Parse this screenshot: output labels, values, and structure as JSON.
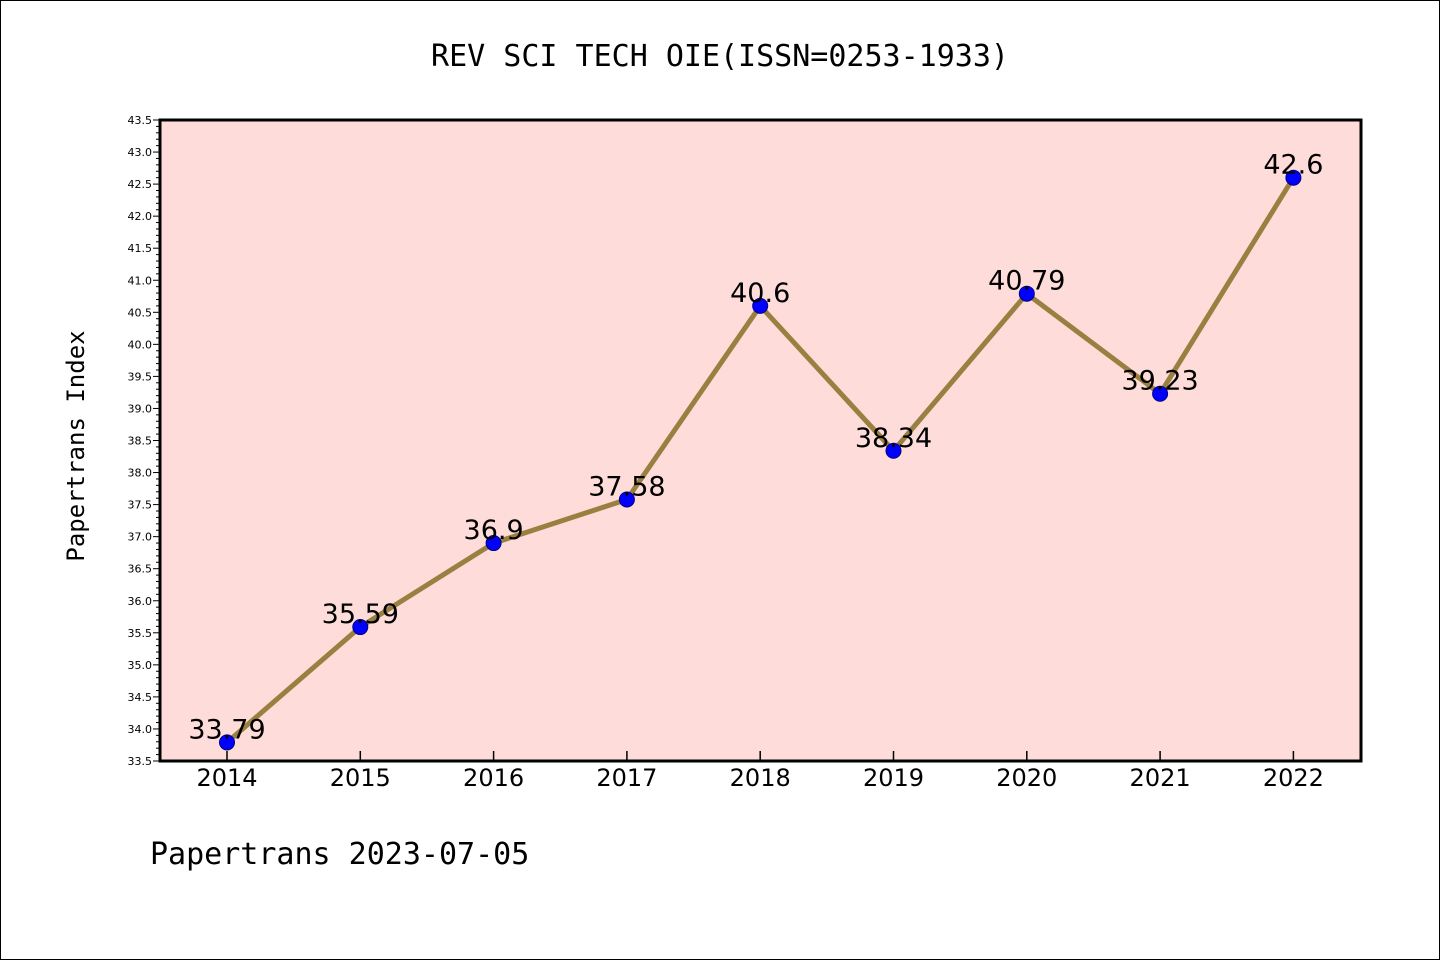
{
  "chart_data": {
    "type": "line",
    "title": "REV SCI TECH OIE(ISSN=0253-1933)",
    "xlabel": "",
    "ylabel": "Papertrans Index",
    "categories": [
      "2014",
      "2015",
      "2016",
      "2017",
      "2018",
      "2019",
      "2020",
      "2021",
      "2022"
    ],
    "series": [
      {
        "values": [
          33.79,
          35.59,
          36.9,
          37.58,
          40.6,
          38.34,
          40.79,
          39.23,
          42.6
        ]
      }
    ],
    "data_labels": [
      "33.79",
      "35.59",
      "36.9",
      "37.58",
      "40.6",
      "38.34",
      "40.79",
      "39.23",
      "42.6"
    ],
    "ylim": [
      33.5,
      43.5
    ],
    "yticks": [
      "33.5",
      "34.0",
      "34.5",
      "35.0",
      "35.5",
      "36.0",
      "36.5",
      "37.0",
      "37.5",
      "38.0",
      "38.5",
      "39.0",
      "39.5",
      "40.0",
      "40.5",
      "41.0",
      "41.5",
      "42.0",
      "42.5",
      "43.0",
      "43.5"
    ],
    "grid": false,
    "legend": "none",
    "colors": {
      "plot_background": "#fddcd9",
      "line": "#9a8040",
      "marker": "#0000ff",
      "marker_edge": "#000080"
    }
  },
  "footer": "Papertrans 2023-07-05"
}
